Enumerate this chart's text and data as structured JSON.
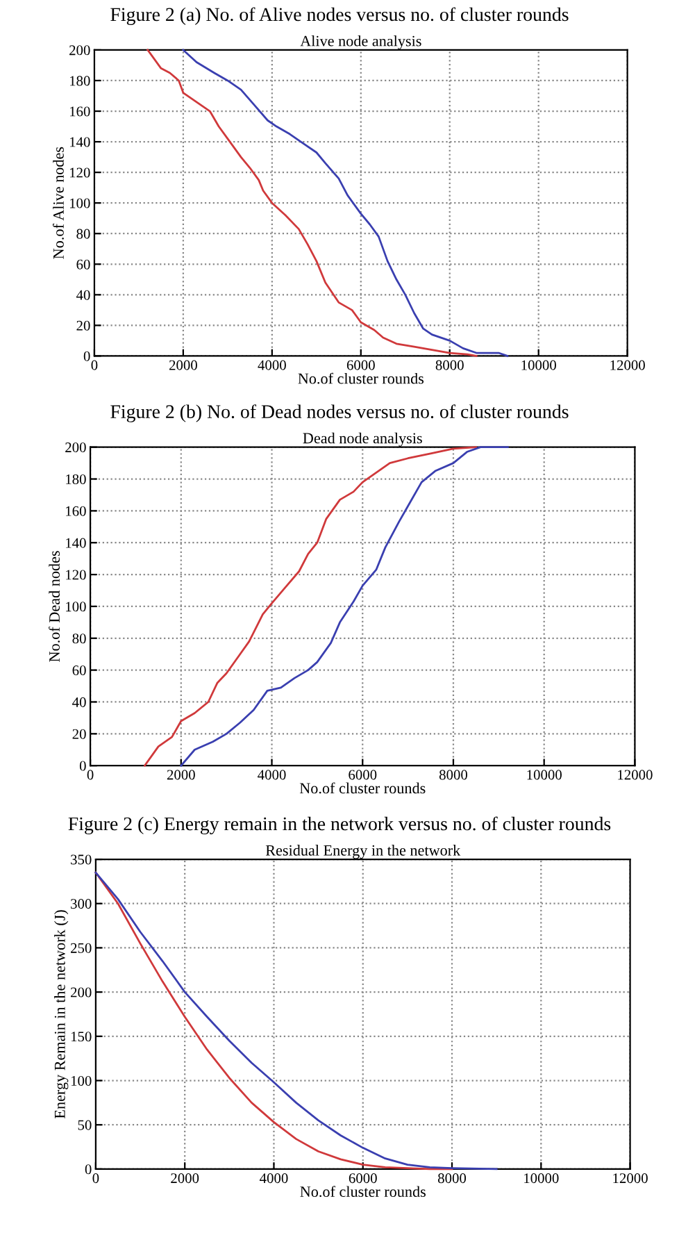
{
  "chart_data": [
    {
      "type": "line",
      "title": "Figure 2 (a) No. of Alive nodes versus no. of cluster rounds",
      "subtitle": "Alive node analysis",
      "xlabel": "No.of cluster rounds",
      "ylabel": "No.of Alive nodes",
      "xlim": [
        0,
        12000
      ],
      "ylim": [
        0,
        200
      ],
      "xticks": [
        0,
        2000,
        4000,
        6000,
        8000,
        10000,
        12000
      ],
      "yticks": [
        0,
        20,
        40,
        60,
        80,
        100,
        120,
        140,
        160,
        180,
        200
      ],
      "grid": true,
      "line_style": "solid",
      "series": [
        {
          "color": "#d0393b",
          "x": [
            1200,
            1500,
            1700,
            1900,
            2000,
            2300,
            2600,
            2800,
            3000,
            3300,
            3500,
            3700,
            3800,
            4000,
            4300,
            4600,
            4800,
            5000,
            5200,
            5500,
            5800,
            6000,
            6300,
            6500,
            6800,
            7200,
            7600,
            8000,
            8400,
            8600
          ],
          "values": [
            200,
            188,
            185,
            180,
            172,
            166,
            160,
            150,
            142,
            130,
            123,
            115,
            108,
            100,
            92,
            83,
            73,
            62,
            48,
            35,
            30,
            22,
            17,
            12,
            8,
            6,
            4,
            2,
            1,
            0
          ]
        },
        {
          "color": "#3a3fb0",
          "x": [
            2000,
            2300,
            2700,
            3000,
            3300,
            3600,
            3900,
            4100,
            4400,
            4700,
            5000,
            5200,
            5500,
            5700,
            6000,
            6200,
            6400,
            6600,
            6800,
            7000,
            7200,
            7400,
            7600,
            8000,
            8300,
            8600,
            9100,
            9300
          ],
          "values": [
            200,
            192,
            185,
            180,
            174,
            164,
            154,
            150,
            145,
            139,
            133,
            126,
            116,
            105,
            93,
            86,
            78,
            62,
            50,
            40,
            28,
            18,
            14,
            10,
            5,
            2,
            2,
            0
          ]
        }
      ]
    },
    {
      "type": "line",
      "title": "Figure 2 (b) No. of Dead nodes versus no. of cluster rounds",
      "subtitle": "Dead node analysis",
      "xlabel": "No.of cluster rounds",
      "ylabel": "No.of Dead nodes",
      "xlim": [
        0,
        12000
      ],
      "ylim": [
        0,
        200
      ],
      "xticks": [
        0,
        2000,
        4000,
        6000,
        8000,
        10000,
        12000
      ],
      "yticks": [
        0,
        20,
        40,
        60,
        80,
        100,
        120,
        140,
        160,
        180,
        200
      ],
      "grid": true,
      "line_style": "solid",
      "series": [
        {
          "color": "#d0393b",
          "x": [
            1200,
            1500,
            1800,
            2000,
            2300,
            2600,
            2800,
            3000,
            3300,
            3500,
            3800,
            4000,
            4300,
            4600,
            4800,
            5000,
            5200,
            5500,
            5800,
            6000,
            6300,
            6600,
            7000,
            7500,
            8000,
            8500
          ],
          "values": [
            0,
            12,
            18,
            28,
            33,
            40,
            52,
            58,
            70,
            78,
            95,
            102,
            112,
            122,
            133,
            140,
            155,
            167,
            172,
            178,
            184,
            190,
            193,
            196,
            199,
            200
          ]
        },
        {
          "color": "#3a3fb0",
          "x": [
            2000,
            2300,
            2700,
            3000,
            3300,
            3600,
            3900,
            4200,
            4500,
            4800,
            5000,
            5300,
            5500,
            5800,
            6000,
            6300,
            6500,
            6800,
            7000,
            7300,
            7600,
            8000,
            8300,
            8600,
            9200
          ],
          "values": [
            0,
            10,
            15,
            20,
            27,
            35,
            47,
            49,
            55,
            60,
            65,
            77,
            90,
            103,
            113,
            123,
            137,
            153,
            163,
            178,
            185,
            190,
            197,
            200,
            200
          ]
        }
      ]
    },
    {
      "type": "line",
      "title": "Figure 2 (c) Energy remain in the network versus no. of cluster rounds",
      "subtitle": "Residual Energy in the network",
      "xlabel": "No.of cluster rounds",
      "ylabel": "Energy Remain in the network (J)",
      "xlim": [
        0,
        12000
      ],
      "ylim": [
        0,
        350
      ],
      "xticks": [
        0,
        2000,
        4000,
        6000,
        8000,
        10000,
        12000
      ],
      "yticks": [
        0,
        50,
        100,
        150,
        200,
        250,
        300,
        350
      ],
      "grid": true,
      "line_style": "solid",
      "series": [
        {
          "color": "#d0393b",
          "x": [
            0,
            500,
            1000,
            1500,
            2000,
            2500,
            3000,
            3500,
            4000,
            4500,
            5000,
            5500,
            6000,
            6500,
            7000,
            7500,
            8000
          ],
          "values": [
            335,
            300,
            255,
            212,
            172,
            135,
            103,
            75,
            53,
            34,
            20,
            11,
            5,
            2,
            1,
            0,
            0
          ]
        },
        {
          "color": "#3a3fb0",
          "x": [
            0,
            500,
            1000,
            1500,
            2000,
            2500,
            3000,
            3500,
            4000,
            4500,
            5000,
            5500,
            6000,
            6500,
            7000,
            7500,
            8000,
            9000
          ],
          "values": [
            335,
            305,
            268,
            235,
            200,
            172,
            145,
            120,
            98,
            75,
            55,
            38,
            24,
            12,
            5,
            2,
            1,
            0
          ]
        }
      ]
    }
  ]
}
